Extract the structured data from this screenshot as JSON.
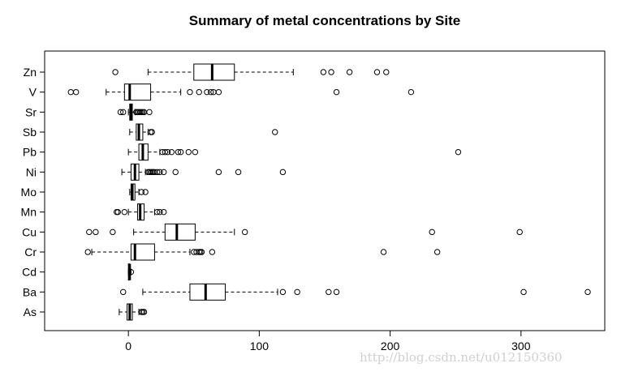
{
  "chart_data": {
    "type": "boxplot",
    "orientation": "horizontal",
    "title": "Summary of metal concentrations by Site",
    "xlabel": "",
    "ylabel": "",
    "xlim": [
      -64,
      364
    ],
    "xticks": [
      0,
      100,
      200,
      300
    ],
    "categories": [
      "As",
      "Ba",
      "Cd",
      "Cr",
      "Cu",
      "Mn",
      "Mo",
      "Ni",
      "Pb",
      "Sb",
      "Sr",
      "V",
      "Zn"
    ],
    "series": [
      {
        "category": "As",
        "whisker_low": -7,
        "q1": -1,
        "median": 1,
        "q3": 3,
        "whisker_high": 8,
        "outliers": [
          10,
          11,
          12
        ]
      },
      {
        "category": "Ba",
        "whisker_low": 11,
        "q1": 47,
        "median": 59,
        "q3": 74,
        "whisker_high": 114,
        "outliers": [
          -4,
          118,
          129,
          153,
          159,
          302,
          351
        ]
      },
      {
        "category": "Cd",
        "whisker_low": 0,
        "q1": 0,
        "median": 1,
        "q3": 1,
        "whisker_high": 2,
        "outliers": [
          2
        ]
      },
      {
        "category": "Cr",
        "whisker_low": -28,
        "q1": 2,
        "median": 5,
        "q3": 20,
        "whisker_high": 47,
        "outliers": [
          -31,
          50,
          52,
          54,
          55,
          56,
          64,
          195,
          236
        ]
      },
      {
        "category": "Cu",
        "whisker_low": 4,
        "q1": 28,
        "median": 37,
        "q3": 51,
        "whisker_high": 81,
        "outliers": [
          -30,
          -25,
          -12,
          89,
          232,
          299
        ]
      },
      {
        "category": "Mn",
        "whisker_low": 0,
        "q1": 7,
        "median": 9,
        "q3": 12,
        "whisker_high": 20,
        "outliers": [
          -9,
          -8,
          -3,
          22,
          24,
          27
        ]
      },
      {
        "category": "Mo",
        "whisker_low": 1,
        "q1": 2,
        "median": 3,
        "q3": 5,
        "whisker_high": 8,
        "outliers": [
          10,
          13
        ]
      },
      {
        "category": "Ni",
        "whisker_low": -5,
        "q1": 2,
        "median": 5,
        "q3": 8,
        "whisker_high": 13,
        "outliers": [
          15,
          16,
          17,
          18,
          19,
          20,
          22,
          24,
          27,
          36,
          69,
          84,
          118
        ]
      },
      {
        "category": "Pb",
        "whisker_low": 0,
        "q1": 8,
        "median": 11,
        "q3": 15,
        "whisker_high": 24,
        "outliers": [
          26,
          28,
          30,
          33,
          38,
          40,
          46,
          51,
          252
        ]
      },
      {
        "category": "Sb",
        "whisker_low": 1,
        "q1": 6,
        "median": 8,
        "q3": 11,
        "whisker_high": 15,
        "outliers": [
          17,
          18,
          112
        ]
      },
      {
        "category": "Sr",
        "whisker_low": 0,
        "q1": 1,
        "median": 2,
        "q3": 3,
        "whisker_high": 5,
        "outliers": [
          -6,
          -4,
          6,
          7,
          8,
          9,
          10,
          11,
          12,
          16
        ]
      },
      {
        "category": "V",
        "whisker_low": -17,
        "q1": -3,
        "median": 1,
        "q3": 17,
        "whisker_high": 40,
        "outliers": [
          -44,
          -40,
          47,
          54,
          60,
          63,
          65,
          69,
          159,
          216
        ]
      },
      {
        "category": "Zn",
        "whisker_low": 15,
        "q1": 50,
        "median": 64,
        "q3": 81,
        "whisker_high": 126,
        "outliers": [
          -10,
          149,
          155,
          169,
          190,
          197
        ]
      }
    ]
  },
  "watermark": "http://blog.csdn.net/u012150360"
}
